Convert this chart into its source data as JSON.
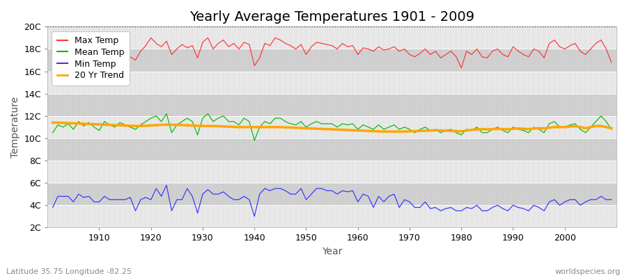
{
  "title": "Yearly Average Temperatures 1901 - 2009",
  "xlabel": "Year",
  "ylabel": "Temperature",
  "lat_lon_label": "Latitude 35.75 Longitude -82.25",
  "watermark": "worldspecies.org",
  "years": [
    1901,
    1902,
    1903,
    1904,
    1905,
    1906,
    1907,
    1908,
    1909,
    1910,
    1911,
    1912,
    1913,
    1914,
    1915,
    1916,
    1917,
    1918,
    1919,
    1920,
    1921,
    1922,
    1923,
    1924,
    1925,
    1926,
    1927,
    1928,
    1929,
    1930,
    1931,
    1932,
    1933,
    1934,
    1935,
    1936,
    1937,
    1938,
    1939,
    1940,
    1941,
    1942,
    1943,
    1944,
    1945,
    1946,
    1947,
    1948,
    1949,
    1950,
    1951,
    1952,
    1953,
    1954,
    1955,
    1956,
    1957,
    1958,
    1959,
    1960,
    1961,
    1962,
    1963,
    1964,
    1965,
    1966,
    1967,
    1968,
    1969,
    1970,
    1971,
    1972,
    1973,
    1974,
    1975,
    1976,
    1977,
    1978,
    1979,
    1980,
    1981,
    1982,
    1983,
    1984,
    1985,
    1986,
    1987,
    1988,
    1989,
    1990,
    1991,
    1992,
    1993,
    1994,
    1995,
    1996,
    1997,
    1998,
    1999,
    2000,
    2001,
    2002,
    2003,
    2004,
    2005,
    2006,
    2007,
    2008,
    2009
  ],
  "max_temp": [
    17.0,
    17.5,
    17.2,
    17.8,
    17.3,
    17.9,
    17.4,
    18.0,
    17.6,
    17.1,
    18.1,
    17.8,
    17.5,
    18.2,
    17.9,
    17.3,
    17.0,
    17.8,
    18.3,
    19.0,
    18.5,
    18.2,
    18.7,
    17.5,
    18.0,
    18.4,
    18.1,
    18.3,
    17.2,
    18.6,
    19.0,
    18.0,
    18.5,
    18.8,
    18.2,
    18.5,
    18.0,
    18.6,
    18.4,
    16.5,
    17.2,
    18.5,
    18.3,
    19.0,
    18.8,
    18.5,
    18.3,
    18.0,
    18.4,
    17.5,
    18.2,
    18.6,
    18.5,
    18.4,
    18.3,
    18.0,
    18.5,
    18.2,
    18.3,
    17.5,
    18.1,
    18.0,
    17.8,
    18.2,
    17.9,
    18.0,
    18.2,
    17.8,
    18.0,
    17.5,
    17.3,
    17.6,
    18.0,
    17.5,
    17.8,
    17.2,
    17.5,
    17.8,
    17.3,
    16.3,
    17.8,
    17.5,
    18.0,
    17.3,
    17.2,
    17.8,
    18.0,
    17.5,
    17.3,
    18.2,
    17.8,
    17.5,
    17.3,
    18.0,
    17.8,
    17.2,
    18.5,
    18.8,
    18.2,
    18.0,
    18.3,
    18.5,
    17.8,
    17.5,
    18.0,
    18.5,
    18.8,
    18.0,
    16.8
  ],
  "mean_temp": [
    10.5,
    11.2,
    11.0,
    11.3,
    10.8,
    11.5,
    11.1,
    11.4,
    11.0,
    10.7,
    11.5,
    11.2,
    11.0,
    11.4,
    11.2,
    11.0,
    10.8,
    11.2,
    11.5,
    11.8,
    12.0,
    11.5,
    12.2,
    10.5,
    11.2,
    11.5,
    11.8,
    11.5,
    10.3,
    11.8,
    12.2,
    11.5,
    11.8,
    12.0,
    11.5,
    11.5,
    11.2,
    11.8,
    11.5,
    9.8,
    11.0,
    11.5,
    11.3,
    11.8,
    11.8,
    11.5,
    11.3,
    11.2,
    11.5,
    11.0,
    11.3,
    11.5,
    11.3,
    11.3,
    11.3,
    11.0,
    11.3,
    11.2,
    11.3,
    10.8,
    11.2,
    11.0,
    10.8,
    11.2,
    10.8,
    11.0,
    11.2,
    10.8,
    11.0,
    10.8,
    10.5,
    10.8,
    11.0,
    10.7,
    10.8,
    10.5,
    10.7,
    10.8,
    10.5,
    10.3,
    10.8,
    10.7,
    11.0,
    10.5,
    10.5,
    10.8,
    11.0,
    10.7,
    10.5,
    11.0,
    10.8,
    10.7,
    10.5,
    11.0,
    10.8,
    10.5,
    11.3,
    11.5,
    11.0,
    11.0,
    11.2,
    11.3,
    10.8,
    10.5,
    11.0,
    11.5,
    12.0,
    11.5,
    10.8
  ],
  "min_temp": [
    3.8,
    4.8,
    4.8,
    4.8,
    4.3,
    5.0,
    4.7,
    4.8,
    4.3,
    4.3,
    4.8,
    4.5,
    4.5,
    4.5,
    4.5,
    4.7,
    3.5,
    4.5,
    4.7,
    4.5,
    5.5,
    4.8,
    5.8,
    3.5,
    4.5,
    4.5,
    5.5,
    4.8,
    3.3,
    5.0,
    5.4,
    5.0,
    5.0,
    5.2,
    4.8,
    4.5,
    4.5,
    4.8,
    4.5,
    3.0,
    5.0,
    5.5,
    5.3,
    5.5,
    5.5,
    5.3,
    5.0,
    5.0,
    5.5,
    4.5,
    5.0,
    5.5,
    5.5,
    5.3,
    5.3,
    5.0,
    5.3,
    5.2,
    5.3,
    4.3,
    5.0,
    4.8,
    3.8,
    4.8,
    4.3,
    4.8,
    5.0,
    3.8,
    4.5,
    4.3,
    3.8,
    3.8,
    4.3,
    3.7,
    3.8,
    3.5,
    3.7,
    3.8,
    3.5,
    3.5,
    3.8,
    3.7,
    4.0,
    3.5,
    3.5,
    3.8,
    4.0,
    3.7,
    3.5,
    4.0,
    3.8,
    3.7,
    3.5,
    4.0,
    3.8,
    3.5,
    4.3,
    4.5,
    4.0,
    4.3,
    4.5,
    4.5,
    4.0,
    4.3,
    4.5,
    4.5,
    4.8,
    4.5,
    4.5
  ],
  "trend_mean": [
    11.4,
    11.4,
    11.38,
    11.36,
    11.34,
    11.32,
    11.3,
    11.28,
    11.26,
    11.24,
    11.22,
    11.2,
    11.18,
    11.16,
    11.14,
    11.12,
    11.1,
    11.1,
    11.12,
    11.15,
    11.18,
    11.2,
    11.22,
    11.22,
    11.2,
    11.18,
    11.16,
    11.14,
    11.12,
    11.1,
    11.1,
    11.1,
    11.08,
    11.06,
    11.04,
    11.02,
    11.0,
    11.0,
    11.0,
    11.0,
    11.0,
    11.0,
    11.0,
    11.0,
    11.0,
    10.98,
    10.96,
    10.94,
    10.92,
    10.9,
    10.88,
    10.86,
    10.84,
    10.82,
    10.8,
    10.78,
    10.76,
    10.74,
    10.72,
    10.7,
    10.68,
    10.66,
    10.64,
    10.62,
    10.6,
    10.6,
    10.6,
    10.6,
    10.6,
    10.62,
    10.64,
    10.66,
    10.68,
    10.7,
    10.72,
    10.7,
    10.68,
    10.66,
    10.64,
    10.62,
    10.7,
    10.75,
    10.8,
    10.82,
    10.8,
    10.82,
    10.84,
    10.82,
    10.8,
    10.85,
    10.88,
    10.85,
    10.82,
    10.88,
    10.9,
    10.88,
    10.95,
    11.0,
    11.0,
    11.0,
    11.05,
    11.08,
    11.0,
    10.9,
    11.0,
    11.1,
    11.1,
    11.0,
    10.9
  ],
  "ylim": [
    2,
    20
  ],
  "yticks": [
    2,
    4,
    6,
    8,
    10,
    12,
    14,
    16,
    18,
    20
  ],
  "ytick_labels": [
    "2C",
    "4C",
    "6C",
    "8C",
    "10C",
    "12C",
    "14C",
    "16C",
    "18C",
    "20C"
  ],
  "fig_bg_color": "#ffffff",
  "plot_bg_color": "#d8d8d8",
  "stripe_light": "#e8e8e8",
  "stripe_dark": "#d0d0d0",
  "max_color": "#ff3333",
  "mean_color": "#00bb00",
  "min_color": "#3333ff",
  "trend_color": "#ffa500",
  "vgrid_color": "#bbbbbb",
  "dotted_line_color": "#444444",
  "title_fontsize": 14,
  "axis_label_fontsize": 10,
  "tick_fontsize": 9,
  "legend_fontsize": 9,
  "xtick_years": [
    1910,
    1920,
    1930,
    1940,
    1950,
    1960,
    1970,
    1980,
    1990,
    2000
  ]
}
